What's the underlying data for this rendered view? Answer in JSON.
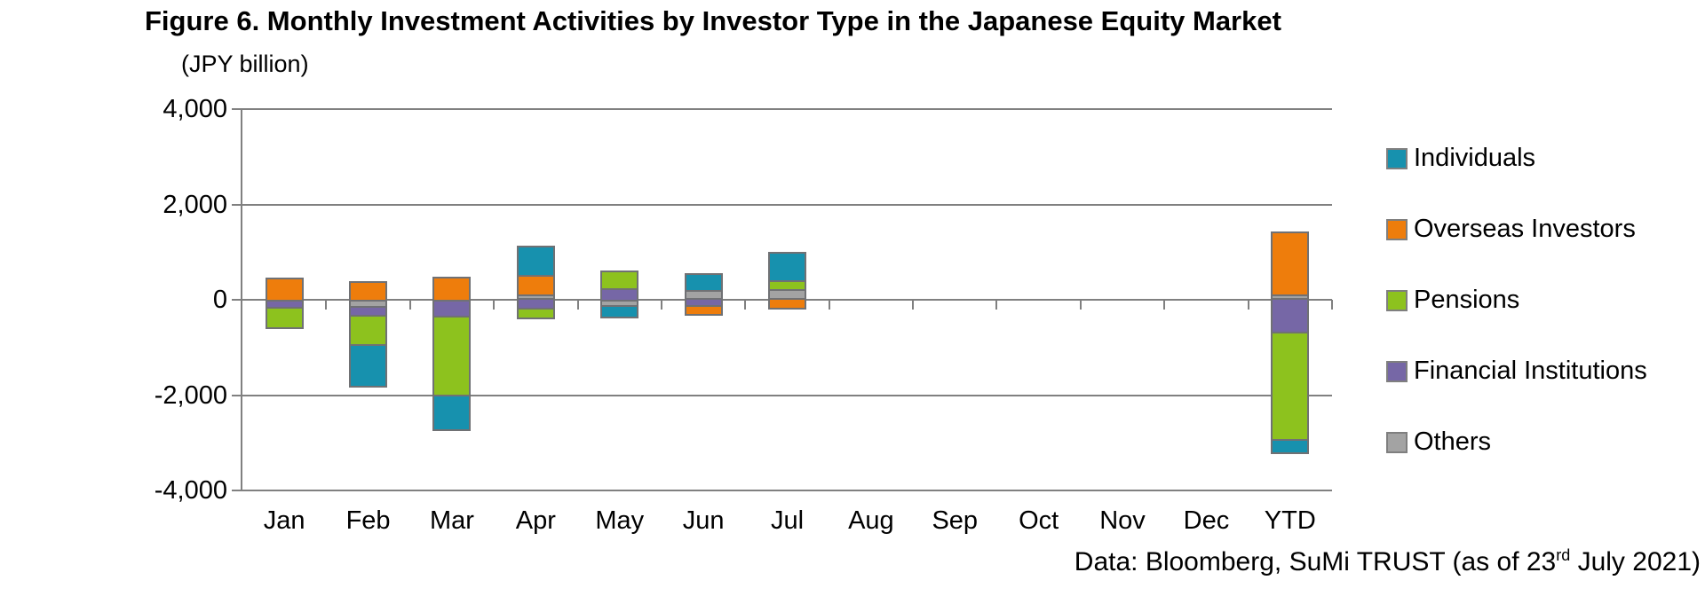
{
  "title": "Figure 6. Monthly Investment Activities by Investor Type in the Japanese Equity Market",
  "units_label": "(JPY billion)",
  "footer": {
    "prefix": "Data: Bloomberg, SuMi TRUST (as of 23",
    "superscript": "rd",
    "suffix": " July 2021)"
  },
  "chart_data": {
    "type": "bar",
    "stacked": true,
    "title": "Figure 6. Monthly Investment Activities by Investor Type in the Japanese Equity Market",
    "ylabel": "(JPY billion)",
    "categories": [
      "Jan",
      "Feb",
      "Mar",
      "Apr",
      "May",
      "Jun",
      "Jul",
      "Aug",
      "Sep",
      "Oct",
      "Nov",
      "Dec",
      "YTD"
    ],
    "series": [
      {
        "name": "Individuals",
        "color": "#1791AE",
        "values": [
          0,
          -830,
          -690,
          570,
          -200,
          310,
          570,
          0,
          0,
          0,
          0,
          0,
          -250
        ]
      },
      {
        "name": "Overseas Investors",
        "color": "#EE7D0C",
        "values": [
          420,
          350,
          450,
          400,
          0,
          -150,
          -160,
          0,
          0,
          0,
          0,
          0,
          1280
        ]
      },
      {
        "name": "Pensions",
        "color": "#8DC21E",
        "values": [
          -400,
          -620,
          -1640,
          -170,
          320,
          0,
          180,
          0,
          0,
          0,
          0,
          0,
          -2250
        ]
      },
      {
        "name": "Financial Institutions",
        "color": "#7667A6",
        "values": [
          -180,
          -180,
          -380,
          -200,
          250,
          -150,
          0,
          0,
          0,
          0,
          0,
          0,
          -700
        ]
      },
      {
        "name": "Others",
        "color": "#A3A3A3",
        "values": [
          0,
          -170,
          0,
          120,
          -150,
          210,
          220,
          0,
          0,
          0,
          0,
          0,
          120
        ]
      }
    ],
    "stack_order_from_axis": [
      "Others",
      "Financial Institutions",
      "Pensions",
      "Overseas Investors",
      "Individuals"
    ],
    "ylim": [
      -4000,
      4000
    ],
    "ytick_interval": 2000,
    "ytick_labels": [
      "4,000",
      "2,000",
      "0",
      "-2,000",
      "-4,000"
    ],
    "grid": true,
    "legend_position": "right",
    "gridline_color": "#808080",
    "segment_border_color": "#707174"
  }
}
